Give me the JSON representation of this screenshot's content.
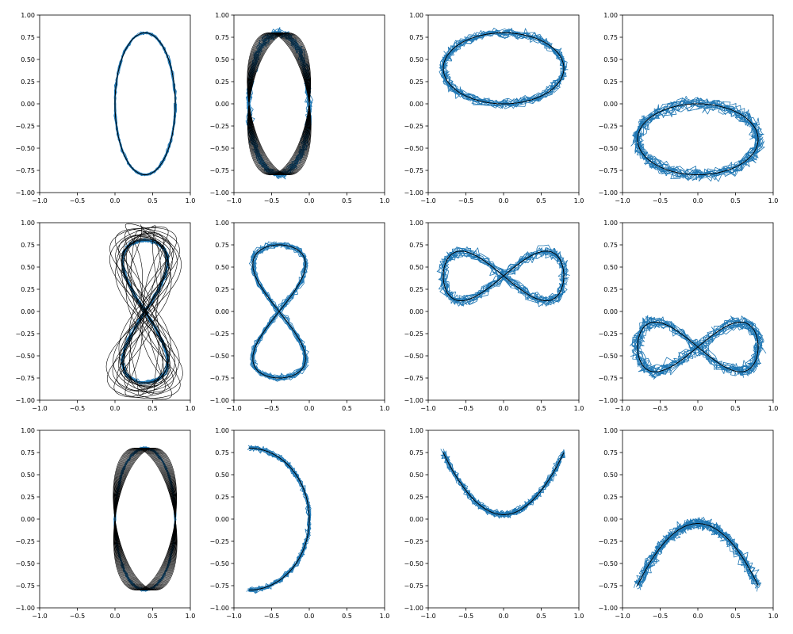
{
  "chart_data": {
    "type": "line",
    "layout": "3x4 grid of line plots",
    "noise_color": "#1f77b4",
    "curve_color": "#000000",
    "grid": false,
    "legend": "none",
    "title": "",
    "xlabel": "",
    "ylabel": "",
    "xlim": [
      -1.0,
      1.0
    ],
    "ylim": [
      -1.0,
      1.0
    ],
    "tick_labels": [
      "−1.0",
      "−0.5",
      "0.0",
      "0.5",
      "1.0"
    ],
    "ytick_labels": [
      "1.00",
      "0.75",
      "0.50",
      "0.25",
      "0.00",
      "−0.25",
      "−0.50",
      "−0.75",
      "−1.00"
    ],
    "panels": [
      {
        "shape": "vertical ellipse",
        "center": [
          0.4,
          0.0
        ],
        "radius": [
          0.4,
          0.8
        ],
        "noise_band": 0.02
      },
      {
        "shape": "vertical ellipse sheared",
        "center": [
          -0.4,
          0.0
        ],
        "radius": [
          0.4,
          0.8
        ],
        "noise_band": 0.06
      },
      {
        "shape": "horizontal ellipse",
        "center": [
          0.0,
          0.4
        ],
        "radius": [
          0.8,
          0.4
        ],
        "noise_band": 0.07
      },
      {
        "shape": "horizontal ellipse",
        "center": [
          0.0,
          -0.4
        ],
        "radius": [
          0.8,
          0.4
        ],
        "noise_band": 0.1
      },
      {
        "shape": "vertical figure-eight distorted",
        "center": [
          0.4,
          0.0
        ],
        "radius": [
          0.3,
          0.8
        ],
        "noise_band": 0.03
      },
      {
        "shape": "vertical figure-eight",
        "center": [
          -0.4,
          0.0
        ],
        "radius": [
          0.35,
          0.75
        ],
        "noise_band": 0.05
      },
      {
        "shape": "horizontal figure-eight",
        "center": [
          0.0,
          0.4
        ],
        "radius": [
          0.8,
          0.28
        ],
        "noise_band": 0.08
      },
      {
        "shape": "horizontal figure-eight",
        "center": [
          0.0,
          -0.4
        ],
        "radius": [
          0.8,
          0.28
        ],
        "noise_band": 0.1
      },
      {
        "shape": "vertical ellipse sheared",
        "center": [
          0.4,
          0.0
        ],
        "radius": [
          0.4,
          0.8
        ],
        "noise_band": 0.02
      },
      {
        "shape": "left-opening arc",
        "x_range": [
          -0.8,
          0.0
        ],
        "y_range": [
          -0.8,
          0.8
        ],
        "noise_band": 0.04
      },
      {
        "shape": "upward parabola",
        "x": [
          -0.8,
          0.0,
          0.8
        ],
        "y": [
          0.75,
          0.05,
          0.75
        ],
        "noise_band": 0.05
      },
      {
        "shape": "downward parabola",
        "x": [
          -0.8,
          0.0,
          0.8
        ],
        "y": [
          -0.75,
          -0.05,
          -0.75
        ],
        "noise_band": 0.08
      }
    ]
  }
}
